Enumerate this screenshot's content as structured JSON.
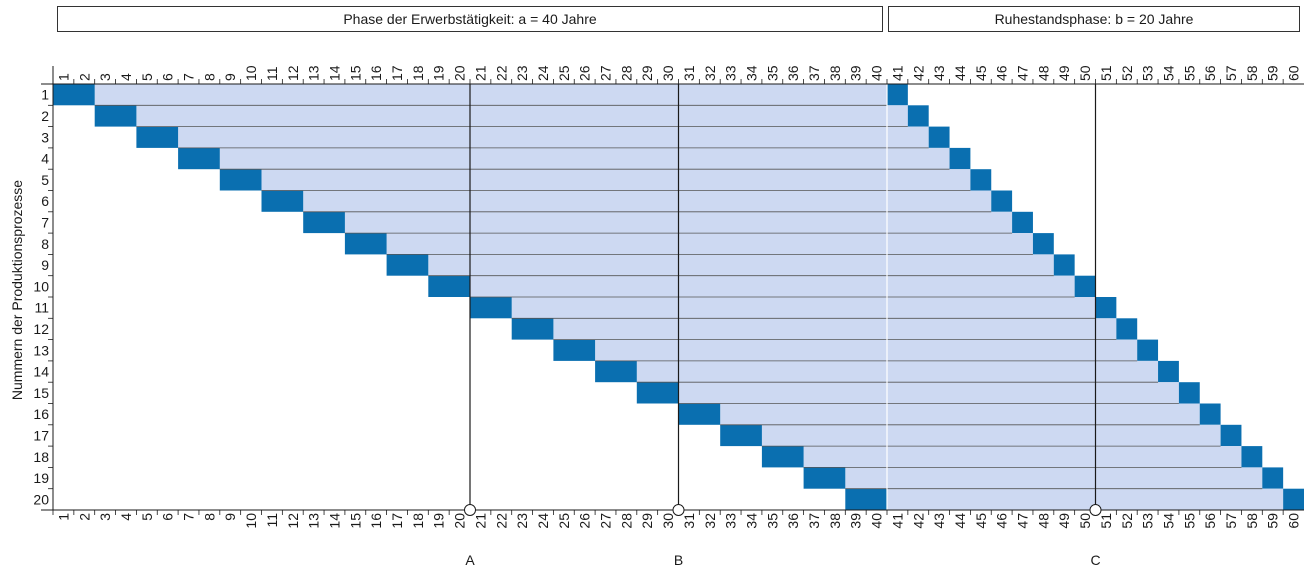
{
  "header": {
    "phase_work": "Phase der Erwerbstätigkeit: a = 40 Jahre",
    "phase_rest": "Ruhestandsphase: b = 20 Jahre"
  },
  "y_axis_label": "Nummern der Produktionsprozesse",
  "markers": [
    {
      "label": "A",
      "x": 21
    },
    {
      "label": "B",
      "x": 31
    },
    {
      "label": "C",
      "x": 51
    }
  ],
  "chart_data": {
    "type": "gantt",
    "x_ticks": [
      "1",
      "2",
      "3",
      "4",
      "5",
      "6",
      "7",
      "8",
      "9",
      "10",
      "11",
      "12",
      "13",
      "14",
      "15",
      "16",
      "17",
      "18",
      "19",
      "20",
      "21",
      "22",
      "23",
      "24",
      "25",
      "26",
      "27",
      "28",
      "29",
      "30",
      "31",
      "32",
      "33",
      "34",
      "35",
      "36",
      "37",
      "38",
      "39",
      "40",
      "41",
      "42",
      "43",
      "44",
      "45",
      "46",
      "47",
      "48",
      "49",
      "50",
      "51",
      "52",
      "53",
      "54",
      "55",
      "56",
      "57",
      "58",
      "59",
      "60"
    ],
    "rows": [
      "1",
      "2",
      "3",
      "4",
      "5",
      "6",
      "7",
      "8",
      "9",
      "10",
      "11",
      "12",
      "13",
      "14",
      "15",
      "16",
      "17",
      "18",
      "19",
      "20"
    ],
    "processes": [
      {
        "id": 1,
        "input_start": 1,
        "input_end": 2,
        "bar_end": 41,
        "output_start": 41,
        "output_end": 41
      },
      {
        "id": 2,
        "input_start": 3,
        "input_end": 4,
        "bar_end": 42,
        "output_start": 42,
        "output_end": 42
      },
      {
        "id": 3,
        "input_start": 5,
        "input_end": 6,
        "bar_end": 43,
        "output_start": 43,
        "output_end": 43
      },
      {
        "id": 4,
        "input_start": 7,
        "input_end": 8,
        "bar_end": 44,
        "output_start": 44,
        "output_end": 44
      },
      {
        "id": 5,
        "input_start": 9,
        "input_end": 10,
        "bar_end": 45,
        "output_start": 45,
        "output_end": 45
      },
      {
        "id": 6,
        "input_start": 11,
        "input_end": 12,
        "bar_end": 46,
        "output_start": 46,
        "output_end": 46
      },
      {
        "id": 7,
        "input_start": 13,
        "input_end": 14,
        "bar_end": 47,
        "output_start": 47,
        "output_end": 47
      },
      {
        "id": 8,
        "input_start": 15,
        "input_end": 16,
        "bar_end": 48,
        "output_start": 48,
        "output_end": 48
      },
      {
        "id": 9,
        "input_start": 17,
        "input_end": 18,
        "bar_end": 49,
        "output_start": 49,
        "output_end": 49
      },
      {
        "id": 10,
        "input_start": 19,
        "input_end": 20,
        "bar_end": 50,
        "output_start": 50,
        "output_end": 50
      },
      {
        "id": 11,
        "input_start": 21,
        "input_end": 22,
        "bar_end": 51,
        "output_start": 51,
        "output_end": 51
      },
      {
        "id": 12,
        "input_start": 23,
        "input_end": 24,
        "bar_end": 52,
        "output_start": 52,
        "output_end": 52
      },
      {
        "id": 13,
        "input_start": 25,
        "input_end": 26,
        "bar_end": 53,
        "output_start": 53,
        "output_end": 53
      },
      {
        "id": 14,
        "input_start": 27,
        "input_end": 28,
        "bar_end": 54,
        "output_start": 54,
        "output_end": 54
      },
      {
        "id": 15,
        "input_start": 29,
        "input_end": 30,
        "bar_end": 55,
        "output_start": 55,
        "output_end": 55
      },
      {
        "id": 16,
        "input_start": 31,
        "input_end": 32,
        "bar_end": 56,
        "output_start": 56,
        "output_end": 56
      },
      {
        "id": 17,
        "input_start": 33,
        "input_end": 34,
        "bar_end": 57,
        "output_start": 57,
        "output_end": 57
      },
      {
        "id": 18,
        "input_start": 35,
        "input_end": 36,
        "bar_end": 58,
        "output_start": 58,
        "output_end": 58
      },
      {
        "id": 19,
        "input_start": 37,
        "input_end": 38,
        "bar_end": 59,
        "output_start": 59,
        "output_end": 59
      },
      {
        "id": 20,
        "input_start": 39,
        "input_end": 40,
        "bar_end": 60,
        "output_start": 60,
        "output_end": 60
      }
    ],
    "colors": {
      "dark": "#0a6fb0",
      "light": "#cdd9f2",
      "grid": "#1a1a1a",
      "divider_white": "#ffffff"
    }
  }
}
